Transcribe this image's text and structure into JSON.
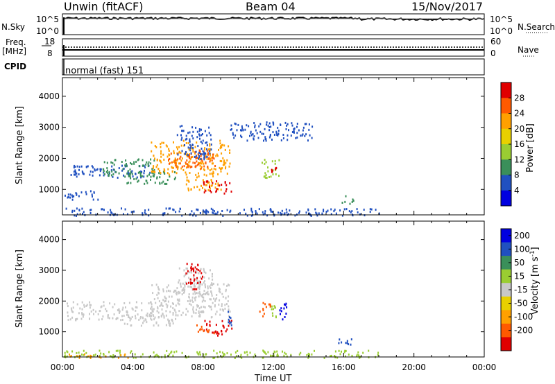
{
  "header": {
    "station": "Unwin (fitACF)",
    "beam": "Beam 04",
    "date": "15/Nov/2017"
  },
  "noise_panel": {
    "left_label": "N.Sky",
    "right_label": "N.Search",
    "left_ticks": [
      "10^5",
      "10^0"
    ],
    "right_ticks": [
      "10^5",
      "10^0"
    ]
  },
  "freq_panel": {
    "left_label_line1": "Freq.",
    "left_label_line2": "[MHz]",
    "right_label": "Nave",
    "left_ticks": [
      "18",
      "8"
    ],
    "right_ticks": [
      "60",
      "0"
    ]
  },
  "cpid_panel": {
    "label": "CPID",
    "mode": "normal (fast) 151"
  },
  "chart_data": [
    {
      "type": "heatmap",
      "name": "power",
      "ylabel": "Slant Range [km]",
      "yticks": [
        "4000",
        "3000",
        "2000",
        "1000"
      ],
      "ylim": [
        180,
        4600
      ],
      "xlim": [
        0,
        24
      ],
      "colorbar_label": "Power [dB]",
      "colorbar_ticks": [
        "28",
        "24",
        "20",
        "16",
        "12",
        "8",
        "4"
      ],
      "colorbar_colors": [
        "#e00000",
        "#ff5a00",
        "#ffa000",
        "#e8d000",
        "#9acd32",
        "#3a8f5a",
        "#2050c0",
        "#0000e0"
      ],
      "regions": [
        {
          "t0": 0.2,
          "t1": 5.0,
          "r0": 1400,
          "r1": 1800,
          "color": "#2050c0"
        },
        {
          "t0": 2.2,
          "t1": 5.2,
          "r0": 1450,
          "r1": 2000,
          "color": "#3a8f5a"
        },
        {
          "t0": 3.5,
          "t1": 6.5,
          "r0": 1200,
          "r1": 1600,
          "color": "#3a8f5a"
        },
        {
          "t0": 5.0,
          "t1": 9.5,
          "r0": 1500,
          "r1": 2600,
          "color": "#ffa000"
        },
        {
          "t0": 6.0,
          "t1": 8.8,
          "r0": 1700,
          "r1": 2300,
          "color": "#ff5a00"
        },
        {
          "t0": 6.5,
          "t1": 8.5,
          "r0": 2000,
          "r1": 3100,
          "color": "#2050c0"
        },
        {
          "t0": 7.0,
          "t1": 9.0,
          "r0": 1000,
          "r1": 1500,
          "color": "#ffa000"
        },
        {
          "t0": 8.0,
          "t1": 9.6,
          "r0": 900,
          "r1": 1300,
          "color": "#e00000"
        },
        {
          "t0": 11.3,
          "t1": 12.3,
          "r0": 1400,
          "r1": 2000,
          "color": "#9acd32"
        },
        {
          "t0": 11.8,
          "t1": 12.2,
          "r0": 1500,
          "r1": 1800,
          "color": "#e00000"
        },
        {
          "t0": 9.5,
          "t1": 14.2,
          "r0": 2600,
          "r1": 3200,
          "color": "#2050c0"
        },
        {
          "t0": 15.8,
          "t1": 16.6,
          "r0": 560,
          "r1": 820,
          "color": "#3a8f5a"
        },
        {
          "t0": 0.0,
          "t1": 18.0,
          "r0": 180,
          "r1": 420,
          "color": "#2050c0"
        },
        {
          "t0": 0.0,
          "t1": 2.0,
          "r0": 700,
          "r1": 1000,
          "color": "#2050c0"
        }
      ]
    },
    {
      "type": "heatmap",
      "name": "velocity",
      "ylabel": "Slant Range [km]",
      "yticks": [
        "4000",
        "3000",
        "2000",
        "1000"
      ],
      "ylim": [
        180,
        4600
      ],
      "xlim": [
        0,
        24
      ],
      "colorbar_label": "Velocity [m s",
      "colorbar_label_sup": "-1",
      "colorbar_label_end": "]",
      "colorbar_ticks": [
        "200",
        "100",
        "50",
        "15",
        "-15",
        "-50",
        "-100",
        "-200"
      ],
      "colorbar_colors": [
        "#0000e0",
        "#2050c0",
        "#3a8f5a",
        "#9acd32",
        "#c8c8c8",
        "#e8d000",
        "#ffa000",
        "#ff5a00",
        "#e00000"
      ],
      "regions": [
        {
          "t0": 0.2,
          "t1": 5.2,
          "r0": 1400,
          "r1": 2000,
          "color": "#c8c8c8"
        },
        {
          "t0": 3.5,
          "t1": 6.5,
          "r0": 1200,
          "r1": 1600,
          "color": "#c8c8c8"
        },
        {
          "t0": 5.0,
          "t1": 9.5,
          "r0": 1500,
          "r1": 2600,
          "color": "#c8c8c8"
        },
        {
          "t0": 6.5,
          "t1": 8.5,
          "r0": 2000,
          "r1": 3100,
          "color": "#c8c8c8"
        },
        {
          "t0": 7.0,
          "t1": 8.0,
          "r0": 2400,
          "r1": 3300,
          "color": "#e00000"
        },
        {
          "t0": 8.0,
          "t1": 9.6,
          "r0": 900,
          "r1": 1400,
          "color": "#e00000"
        },
        {
          "t0": 7.6,
          "t1": 8.6,
          "r0": 950,
          "r1": 1250,
          "color": "#ff5a00"
        },
        {
          "t0": 11.2,
          "t1": 11.8,
          "r0": 1500,
          "r1": 2000,
          "color": "#ff5a00"
        },
        {
          "t0": 11.8,
          "t1": 12.3,
          "r0": 1400,
          "r1": 1900,
          "color": "#9acd32"
        },
        {
          "t0": 12.3,
          "t1": 12.8,
          "r0": 1400,
          "r1": 2000,
          "color": "#0000e0"
        },
        {
          "t0": 9.2,
          "t1": 9.6,
          "r0": 1200,
          "r1": 1700,
          "color": "#2050c0"
        },
        {
          "t0": 15.6,
          "t1": 16.6,
          "r0": 600,
          "r1": 820,
          "color": "#2050c0"
        },
        {
          "t0": 0.0,
          "t1": 18.0,
          "r0": 180,
          "r1": 420,
          "color": "#9acd32"
        },
        {
          "t0": 0.0,
          "t1": 4.0,
          "r0": 180,
          "r1": 300,
          "color": "#ffa000"
        }
      ]
    }
  ],
  "xaxis": {
    "label": "Time UT",
    "ticks": [
      "00:00",
      "04:00",
      "08:00",
      "12:00",
      "16:00",
      "20:00",
      "00:00"
    ]
  }
}
